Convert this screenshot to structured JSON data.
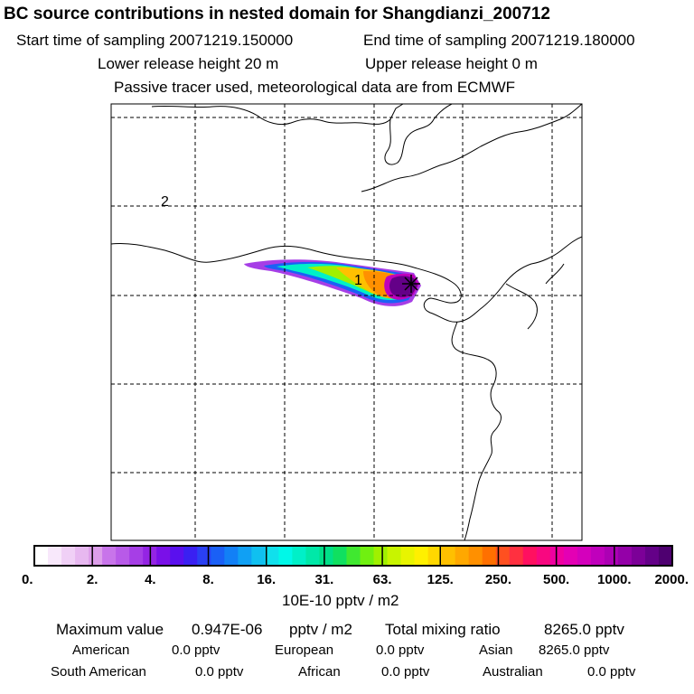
{
  "header": {
    "title": "BC  source contributions in nested domain for Shangdianzi_200712",
    "start_time": "Start time of sampling 20071219.150000",
    "end_time": "End time of sampling 20071219.180000",
    "lower_release": "Lower release height   20 m",
    "upper_release": "Upper release height    0 m",
    "tracer_note": "Passive tracer used, meteorological data are from ECMWF"
  },
  "map": {
    "labels": [
      "1",
      "2"
    ],
    "marker": "receptor-cross-icon"
  },
  "colorbar": {
    "tick_labels": [
      "0.",
      "2.",
      "4.",
      "8.",
      "16.",
      "31.",
      "63.",
      "125.",
      "250.",
      "500.",
      "1000.",
      "2000."
    ],
    "unit": "10E-10 pptv / m2",
    "colors": [
      "#ffffff",
      "#f8e8fb",
      "#f0d0f6",
      "#e7b8f0",
      "#dd9eea",
      "#c874ea",
      "#b85ae8",
      "#a63ee6",
      "#9424e4",
      "#7a10e8",
      "#5a10ee",
      "#3a20f2",
      "#2a40f4",
      "#1a60f6",
      "#1280f6",
      "#10a0f4",
      "#10c0f0",
      "#10e0ec",
      "#00f8e8",
      "#00f0c8",
      "#00e8a8",
      "#00e088",
      "#10e060",
      "#40e830",
      "#70f010",
      "#a0f000",
      "#c8f400",
      "#e8f400",
      "#fff000",
      "#ffd800",
      "#ffc000",
      "#ffa800",
      "#ff9000",
      "#ff7000",
      "#ff5020",
      "#ff3040",
      "#ff1060",
      "#f80880",
      "#f000a0",
      "#e400b4",
      "#d400bc",
      "#c000bc",
      "#ac00b4",
      "#9400a8",
      "#7c0098",
      "#640088",
      "#4e0070"
    ]
  },
  "stats": {
    "max_label": "Maximum value",
    "max_value": "0.947E-06",
    "max_unit": "pptv / m2",
    "total_label": "Total mixing ratio",
    "total_value": "8265.0 pptv",
    "regions": [
      {
        "name": "American",
        "value": "0.0 pptv"
      },
      {
        "name": "European",
        "value": "0.0 pptv"
      },
      {
        "name": "Asian",
        "value": "8265.0 pptv"
      },
      {
        "name": "South American",
        "value": "0.0 pptv"
      },
      {
        "name": "African",
        "value": "0.0 pptv"
      },
      {
        "name": "Australian",
        "value": "0.0 pptv"
      }
    ]
  }
}
